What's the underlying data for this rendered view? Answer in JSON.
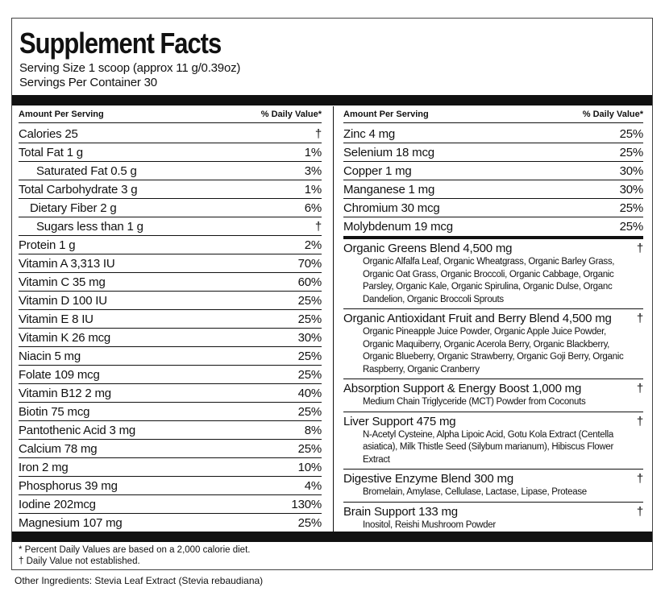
{
  "header": {
    "title": "Supplement Facts",
    "serving_size": "Serving Size 1 scoop (approx 11 g/0.39oz)",
    "servings_per_container": "Servings Per Container 30"
  },
  "table": {
    "left_header": {
      "amount": "Amount Per Serving",
      "dv": "% Daily Value*"
    },
    "right_header": {
      "amount": "Amount Per Serving",
      "dv": "% Daily Value*"
    },
    "left_rows": [
      {
        "name": "Calories 25",
        "dv": "†"
      },
      {
        "name": "Total Fat 1 g",
        "dv": "1%"
      },
      {
        "name": "Saturated Fat 0.5 g",
        "dv": "3%"
      },
      {
        "name": "Total Carbohydrate 3 g",
        "dv": "1%"
      },
      {
        "name": "Dietary Fiber 2 g",
        "dv": "6%"
      },
      {
        "name": "Sugars less than 1 g",
        "dv": "†"
      },
      {
        "name": "Protein 1 g",
        "dv": "2%"
      },
      {
        "name": "Vitamin A 3,313 IU",
        "dv": "70%"
      },
      {
        "name": "Vitamin C 35 mg",
        "dv": "60%"
      },
      {
        "name": "Vitamin D 100 IU",
        "dv": "25%"
      },
      {
        "name": "Vitamin E 8 IU",
        "dv": "25%"
      },
      {
        "name": "Vitamin K 26 mcg",
        "dv": "30%"
      },
      {
        "name": "Niacin 5 mg",
        "dv": "25%"
      },
      {
        "name": "Folate 109 mcg",
        "dv": "25%"
      },
      {
        "name": "Vitamin B12 2 mg",
        "dv": "40%"
      },
      {
        "name": "Biotin 75 mcg",
        "dv": "25%"
      },
      {
        "name": "Pantothenic Acid 3 mg",
        "dv": "8%"
      },
      {
        "name": "Calcium 78 mg",
        "dv": "25%"
      },
      {
        "name": "Iron 2 mg",
        "dv": "10%"
      },
      {
        "name": "Phosphorus 39 mg",
        "dv": "4%"
      },
      {
        "name": "Iodine 202mcg",
        "dv": "130%"
      },
      {
        "name": "Magnesium 107 mg",
        "dv": "25%"
      }
    ],
    "right_rows": [
      {
        "name": "Zinc 4 mg",
        "dv": "25%"
      },
      {
        "name": "Selenium 18 mcg",
        "dv": "25%"
      },
      {
        "name": "Copper 1 mg",
        "dv": "30%"
      },
      {
        "name": "Manganese 1 mg",
        "dv": "30%"
      },
      {
        "name": "Chromium 30 mcg",
        "dv": "25%"
      },
      {
        "name": "Molybdenum 19 mcg",
        "dv": "25%"
      }
    ],
    "blends": [
      {
        "name": "Organic Greens Blend 4,500 mg",
        "dv": "†",
        "description": "Organic Alfalfa Leaf, Organic Wheatgrass, Organic Barley Grass, Organic Oat Grass, Organic Broccoli, Organic Cabbage, Organic Parsley, Organic Kale, Organic Spirulina, Organic Dulse, Organc Dandelion, Organic Broccoli Sprouts"
      },
      {
        "name": "Organic Antioxidant Fruit and Berry Blend 4,500 mg",
        "dv": "†",
        "description": "Organic Pineapple Juice Powder, Organic Apple Juice Powder, Organic Maquiberry, Organic Acerola Berry, Organic Blackberry, Organic Blueberry, Organic Strawberry, Organic Goji Berry, Organic Raspberry, Organic Cranberry"
      },
      {
        "name": "Absorption Support & Energy Boost 1,000 mg",
        "dv": "†",
        "description": "Medium Chain Triglyceride (MCT) Powder from Coconuts"
      },
      {
        "name": "Liver Support 475 mg",
        "dv": "†",
        "description": "N-Acetyl Cysteine, Alpha Lipoic Acid, Gotu Kola Extract (Centella asiatica), Milk Thistle Seed (Silybum marianum), Hibiscus Flower Extract"
      },
      {
        "name": "Digestive Enzyme Blend 300 mg",
        "dv": "†",
        "description": "Bromelain, Amylase, Cellulase, Lactase, Lipase, Protease"
      },
      {
        "name": "Brain Support 133 mg",
        "dv": "†",
        "description": "Inositol, Reishi Mushroom Powder"
      }
    ]
  },
  "footnotes": [
    "* Percent Daily Values are based on a 2,000 calorie diet.",
    "† Daily Value not established."
  ],
  "other_ingredients": "Other Ingredients: Stevia Leaf Extract (Stevia rebaudiana)"
}
